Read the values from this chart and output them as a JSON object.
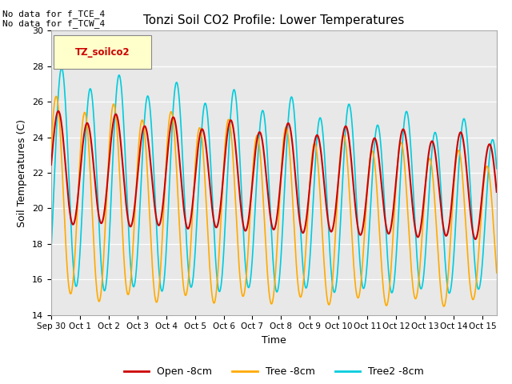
{
  "title": "Tonzi Soil CO2 Profile: Lower Temperatures",
  "xlabel": "Time",
  "ylabel": "Soil Temperatures (C)",
  "ylim": [
    14,
    30
  ],
  "yticks": [
    14,
    16,
    18,
    20,
    22,
    24,
    26,
    28,
    30
  ],
  "xtick_labels": [
    "Sep 30",
    "Oct 1",
    "Oct 2",
    "Oct 3",
    "Oct 4",
    "Oct 5",
    "Oct 6",
    "Oct 7",
    "Oct 8",
    "Oct 9",
    "Oct 10",
    "Oct 11",
    "Oct 12",
    "Oct 13",
    "Oct 14",
    "Oct 15"
  ],
  "annotation_text": "No data for f_TCE_4\nNo data for f_TCW_4",
  "legend_label": "TZ_soilco2",
  "line_labels": [
    "Open -8cm",
    "Tree -8cm",
    "Tree2 -8cm"
  ],
  "line_colors": [
    "#cc0000",
    "#ffaa00",
    "#00ccdd"
  ],
  "background_color": "#e8e8e8",
  "legend_box_color": "#ffffcc",
  "n_days": 15.5,
  "points_per_day": 96
}
